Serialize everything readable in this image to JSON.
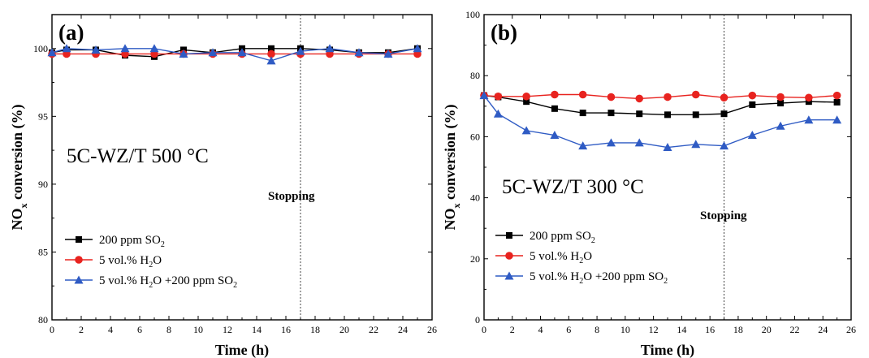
{
  "chart_data": [
    {
      "type": "line",
      "panel_label": "(a)",
      "condition_label": "5C-WZ/T 500 °C",
      "annotation": "Stopping",
      "annotation_x": 17,
      "xlabel": "Time (h)",
      "ylabel_main": "NO",
      "ylabel_sub": "x",
      "ylabel_rest": " conversion (%)",
      "xlim": [
        0,
        26
      ],
      "ylim": [
        80,
        102.5
      ],
      "x_ticks": [
        0,
        2,
        4,
        6,
        8,
        10,
        12,
        14,
        16,
        18,
        20,
        22,
        24,
        26
      ],
      "y_ticks": [
        80,
        85,
        90,
        95,
        100
      ],
      "grid": false,
      "legend_position": "bottom-left",
      "series": [
        {
          "name": "200 ppm SO",
          "name_sub": "2",
          "name_rest": "",
          "color": "#000000",
          "marker": "square",
          "x": [
            0,
            1,
            3,
            5,
            7,
            9,
            11,
            13,
            15,
            17,
            19,
            21,
            23,
            25
          ],
          "y": [
            99.7,
            99.9,
            99.9,
            99.5,
            99.4,
            99.9,
            99.7,
            100.0,
            100.0,
            100.0,
            99.9,
            99.7,
            99.7,
            100.0
          ]
        },
        {
          "name": "5 vol.% H",
          "name_sub": "2",
          "name_rest": "O",
          "color": "#e8231f",
          "marker": "circle",
          "x": [
            0,
            1,
            3,
            5,
            7,
            9,
            11,
            13,
            15,
            17,
            19,
            21,
            23,
            25
          ],
          "y": [
            99.6,
            99.6,
            99.6,
            99.6,
            99.6,
            99.6,
            99.6,
            99.6,
            99.6,
            99.6,
            99.6,
            99.6,
            99.6,
            99.6
          ]
        },
        {
          "name": "5 vol.% H",
          "name_sub": "2",
          "name_rest": "O +200 ppm SO",
          "name_sub2": "2",
          "color": "#2f5bc4",
          "marker": "triangle",
          "x": [
            0,
            1,
            3,
            5,
            7,
            9,
            11,
            13,
            15,
            17,
            19,
            21,
            23,
            25
          ],
          "y": [
            99.7,
            100.0,
            99.9,
            100.0,
            100.0,
            99.6,
            99.7,
            99.7,
            99.1,
            99.8,
            100.0,
            99.7,
            99.6,
            100.0
          ]
        }
      ]
    },
    {
      "type": "line",
      "panel_label": "(b)",
      "condition_label": "5C-WZ/T 300 °C",
      "annotation": "Stopping",
      "annotation_x": 17,
      "xlabel": "Time (h)",
      "ylabel_main": "NO",
      "ylabel_sub": "x",
      "ylabel_rest": " conversion (%)",
      "xlim": [
        0,
        26
      ],
      "ylim": [
        0,
        100
      ],
      "x_ticks": [
        0,
        2,
        4,
        6,
        8,
        10,
        12,
        14,
        16,
        18,
        20,
        22,
        24,
        26
      ],
      "y_ticks": [
        0,
        20,
        40,
        60,
        80,
        100
      ],
      "grid": false,
      "legend_position": "bottom-left",
      "series": [
        {
          "name": "200 ppm SO",
          "name_sub": "2",
          "name_rest": "",
          "color": "#000000",
          "marker": "square",
          "x": [
            0,
            1,
            3,
            5,
            7,
            9,
            11,
            13,
            15,
            17,
            19,
            21,
            23,
            25
          ],
          "y": [
            73.5,
            73.0,
            71.5,
            69.2,
            67.8,
            67.8,
            67.5,
            67.2,
            67.2,
            67.5,
            70.5,
            71.0,
            71.5,
            71.3
          ]
        },
        {
          "name": "5 vol.% H",
          "name_sub": "2",
          "name_rest": "O",
          "color": "#e8231f",
          "marker": "circle",
          "x": [
            0,
            1,
            3,
            5,
            7,
            9,
            11,
            13,
            15,
            17,
            19,
            21,
            23,
            25
          ],
          "y": [
            73.5,
            73.2,
            73.2,
            73.8,
            73.8,
            73.0,
            72.5,
            73.0,
            73.8,
            72.8,
            73.5,
            73.0,
            72.8,
            73.5
          ]
        },
        {
          "name": "5 vol.% H",
          "name_sub": "2",
          "name_rest": "O +200 ppm SO",
          "name_sub2": "2",
          "color": "#2f5bc4",
          "marker": "triangle",
          "x": [
            0,
            1,
            3,
            5,
            7,
            9,
            11,
            13,
            15,
            17,
            19,
            21,
            23,
            25
          ],
          "y": [
            73.5,
            67.5,
            62.0,
            60.5,
            57.0,
            58.0,
            58.0,
            56.5,
            57.5,
            57.0,
            60.5,
            63.5,
            65.5,
            65.5
          ]
        }
      ]
    }
  ]
}
